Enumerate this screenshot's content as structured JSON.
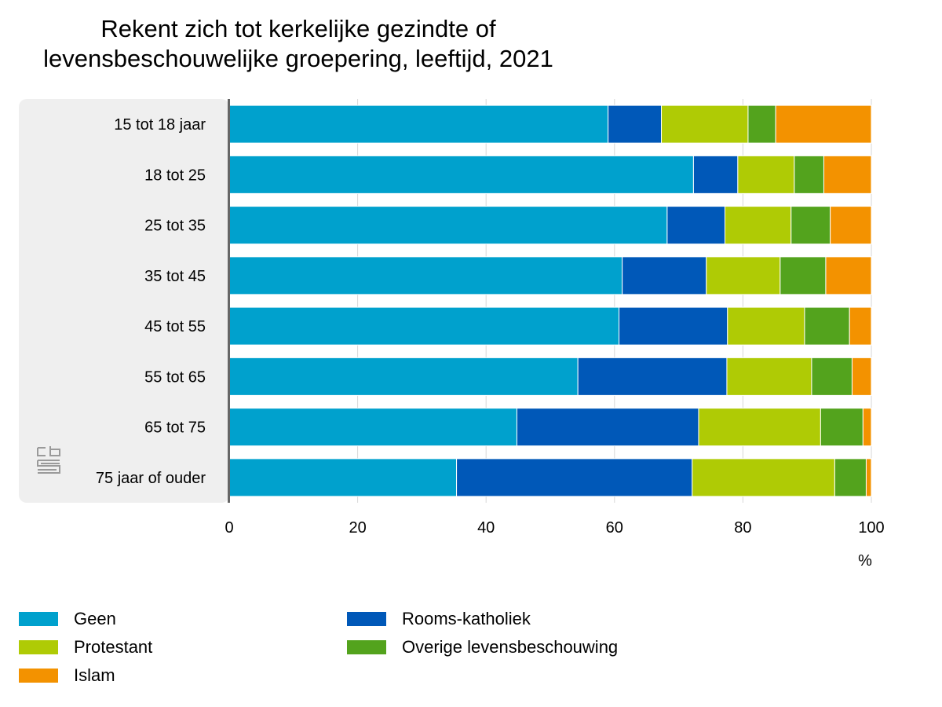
{
  "chart_data": {
    "type": "bar",
    "orientation": "horizontal",
    "stacked": true,
    "title": "Rekent zich tot kerkelijke gezindte of levensbeschouwelijke groepering, leeftijd, 2021",
    "title_lines": [
      "Rekent zich tot kerkelijke gezindte of",
      "levensbeschouwelijke groepering, leeftijd, 2021"
    ],
    "categories": [
      "15 tot 18 jaar",
      "18 tot 25",
      "25 tot 35",
      "35 tot 45",
      "45 tot 55",
      "55 tot 65",
      "65 tot 75",
      "75 jaar of ouder"
    ],
    "series": [
      {
        "name": "Geen",
        "color": "#00a1cd",
        "values": [
          59.0,
          72.3,
          68.2,
          61.2,
          60.7,
          54.3,
          44.8,
          35.4
        ]
      },
      {
        "name": "Rooms-katholiek",
        "color": "#0058b8",
        "values": [
          8.3,
          6.9,
          9.0,
          13.1,
          16.9,
          23.2,
          28.3,
          36.7
        ]
      },
      {
        "name": "Protestant",
        "color": "#afcb05",
        "values": [
          13.5,
          8.8,
          10.3,
          11.5,
          12.0,
          13.2,
          19.0,
          22.2
        ]
      },
      {
        "name": "Overige levensbeschouwing",
        "color": "#53a31d",
        "values": [
          4.3,
          4.6,
          6.1,
          7.1,
          7.0,
          6.3,
          6.6,
          4.9
        ]
      },
      {
        "name": "Islam",
        "color": "#f39200",
        "values": [
          14.9,
          7.4,
          6.4,
          7.1,
          3.4,
          3.0,
          1.3,
          0.8
        ]
      }
    ],
    "xlim": [
      0,
      100
    ],
    "xticks": [
      "0",
      "20",
      "40",
      "60",
      "80",
      "100"
    ],
    "xunit": "%",
    "grid": true,
    "legend_position": "bottom",
    "legend_order": [
      "Geen",
      "Rooms-katholiek",
      "Protestant",
      "Overige levensbeschouwing",
      "Islam"
    ]
  },
  "logo": {
    "text": "cbs",
    "icon": "cbs-logo-icon"
  }
}
